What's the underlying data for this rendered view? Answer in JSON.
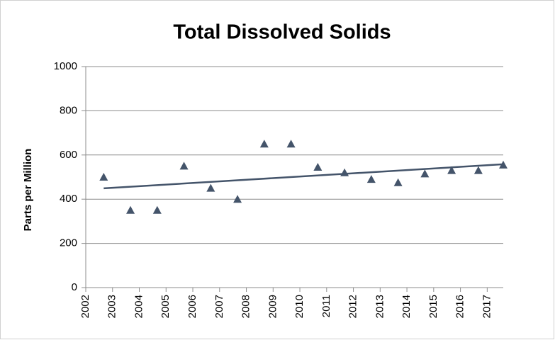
{
  "chart_data": {
    "type": "scatter",
    "title": "Total Dissolved Solids",
    "y_label": "Parts per Million",
    "x": [
      2002.67,
      2003.67,
      2004.67,
      2005.67,
      2006.67,
      2007.67,
      2008.67,
      2009.67,
      2010.67,
      2011.67,
      2012.67,
      2013.67,
      2014.67,
      2015.67,
      2016.67,
      2017.6
    ],
    "values": [
      500,
      350,
      350,
      550,
      450,
      400,
      650,
      650,
      545,
      520,
      490,
      475,
      515,
      530,
      530,
      555
    ],
    "color": "#44546a",
    "marker": "triangle",
    "trendline": true,
    "xlim": [
      2002,
      2017.6
    ],
    "xticks": [
      2002,
      2003,
      2004,
      2005,
      2006,
      2007,
      2008,
      2009,
      2010,
      2011,
      2012,
      2013,
      2014,
      2015,
      2016,
      2017
    ],
    "ylim": [
      0,
      1000
    ],
    "yticks": [
      0,
      200,
      400,
      600,
      800,
      1000
    ],
    "grid": true
  }
}
